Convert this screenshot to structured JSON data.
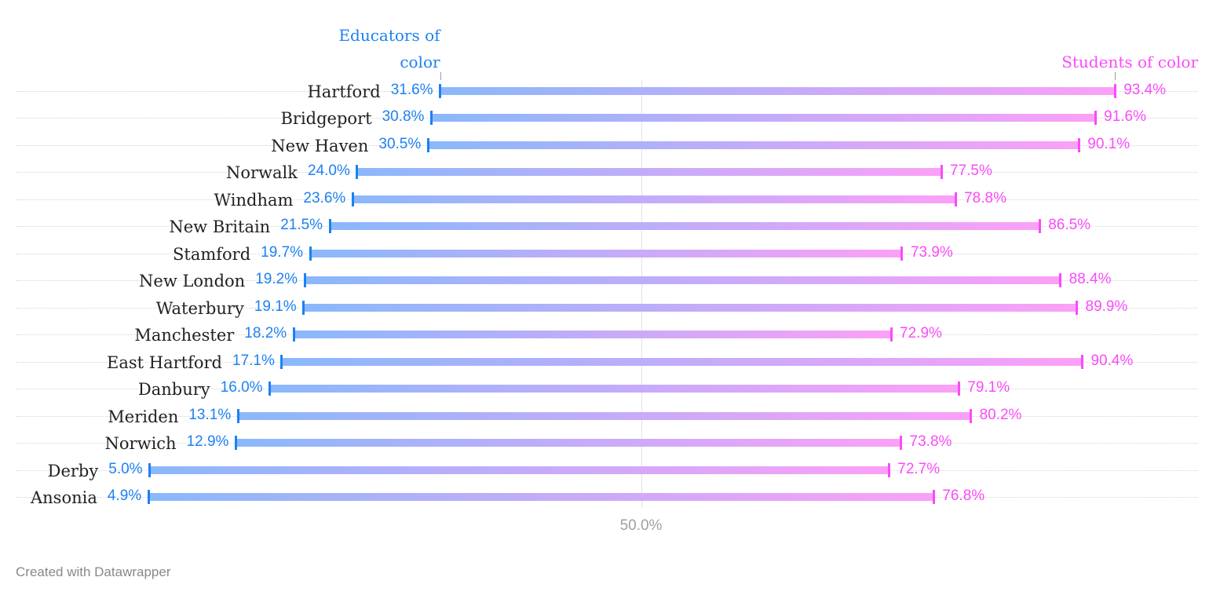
{
  "chart_data": {
    "type": "range-dot",
    "title": "",
    "xlabel": "",
    "ylabel": "",
    "xlim": [
      0,
      100
    ],
    "x_ticks": [
      50
    ],
    "x_tick_labels": [
      "50.0%"
    ],
    "grid": true,
    "legend_position": "inline-top",
    "categories": [
      "Hartford",
      "Bridgeport",
      "New Haven",
      "Norwalk",
      "Windham",
      "New Britain",
      "Stamford",
      "New London",
      "Waterbury",
      "Manchester",
      "East Hartford",
      "Danbury",
      "Meriden",
      "Norwich",
      "Derby",
      "Ansonia"
    ],
    "series": [
      {
        "name": "Educators of color",
        "color": "#1d81f2",
        "values": [
          31.6,
          30.8,
          30.5,
          24.0,
          23.6,
          21.5,
          19.7,
          19.2,
          19.1,
          18.2,
          17.1,
          16.0,
          13.1,
          12.9,
          5.0,
          4.9
        ]
      },
      {
        "name": "Students of color",
        "color": "#fa4bfa",
        "values": [
          93.4,
          91.6,
          90.1,
          77.5,
          78.8,
          86.5,
          73.9,
          88.4,
          89.9,
          72.9,
          90.4,
          79.1,
          80.2,
          73.8,
          72.7,
          76.8
        ]
      }
    ]
  },
  "labels": {
    "educators_header_line1": "Educators of",
    "educators_header_line2": "color",
    "students_header": "Students of color",
    "axis_tick": "50.0%",
    "footer": "Created with Datawrapper"
  },
  "colors": {
    "educators": "#1d81f2",
    "students": "#fa4bfa",
    "bar_start": "#8ab8fb",
    "bar_end": "#fba0f7",
    "city_text": "#222222",
    "axis_text": "#a0a0a0",
    "footer_text": "#888888"
  },
  "rows": [
    {
      "city": "Hartford",
      "educators": 31.6,
      "students": 93.4,
      "educators_label": "31.6%",
      "students_label": "93.4%"
    },
    {
      "city": "Bridgeport",
      "educators": 30.8,
      "students": 91.6,
      "educators_label": "30.8%",
      "students_label": "91.6%"
    },
    {
      "city": "New Haven",
      "educators": 30.5,
      "students": 90.1,
      "educators_label": "30.5%",
      "students_label": "90.1%"
    },
    {
      "city": "Norwalk",
      "educators": 24.0,
      "students": 77.5,
      "educators_label": "24.0%",
      "students_label": "77.5%"
    },
    {
      "city": "Windham",
      "educators": 23.6,
      "students": 78.8,
      "educators_label": "23.6%",
      "students_label": "78.8%"
    },
    {
      "city": "New Britain",
      "educators": 21.5,
      "students": 86.5,
      "educators_label": "21.5%",
      "students_label": "86.5%"
    },
    {
      "city": "Stamford",
      "educators": 19.7,
      "students": 73.9,
      "educators_label": "19.7%",
      "students_label": "73.9%"
    },
    {
      "city": "New London",
      "educators": 19.2,
      "students": 88.4,
      "educators_label": "19.2%",
      "students_label": "88.4%"
    },
    {
      "city": "Waterbury",
      "educators": 19.1,
      "students": 89.9,
      "educators_label": "19.1%",
      "students_label": "89.9%"
    },
    {
      "city": "Manchester",
      "educators": 18.2,
      "students": 72.9,
      "educators_label": "18.2%",
      "students_label": "72.9%"
    },
    {
      "city": "East Hartford",
      "educators": 17.1,
      "students": 90.4,
      "educators_label": "17.1%",
      "students_label": "90.4%"
    },
    {
      "city": "Danbury",
      "educators": 16.0,
      "students": 79.1,
      "educators_label": "16.0%",
      "students_label": "79.1%"
    },
    {
      "city": "Meriden",
      "educators": 13.1,
      "students": 80.2,
      "educators_label": "13.1%",
      "students_label": "80.2%"
    },
    {
      "city": "Norwich",
      "educators": 12.9,
      "students": 73.8,
      "educators_label": "12.9%",
      "students_label": "73.8%"
    },
    {
      "city": "Derby",
      "educators": 5.0,
      "students": 72.7,
      "educators_label": "5.0%",
      "students_label": "72.7%"
    },
    {
      "city": "Ansonia",
      "educators": 4.9,
      "students": 76.8,
      "educators_label": "4.9%",
      "students_label": "76.8%"
    }
  ]
}
